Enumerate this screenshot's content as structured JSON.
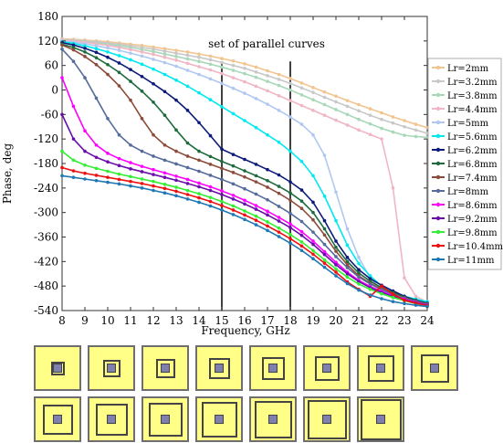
{
  "chart_data": {
    "type": "line",
    "title": "",
    "xlabel": "Frequency, GHz",
    "ylabel": "Phase, deg",
    "xlim": [
      8,
      24
    ],
    "ylim": [
      -540,
      180
    ],
    "xticks": [
      "8",
      "9",
      "10",
      "11",
      "12",
      "13",
      "14",
      "15",
      "16",
      "17",
      "18",
      "19",
      "20",
      "21",
      "22",
      "23",
      "24"
    ],
    "yticks": [
      "180",
      "120",
      "60",
      "0",
      "-60",
      "-120",
      "-180",
      "-240",
      "-300",
      "-360",
      "-420",
      "-480",
      "-540"
    ],
    "annotation": "set of parallel curves",
    "vlines": [
      15,
      18
    ],
    "legend_position": "right",
    "x": [
      8,
      8.5,
      9,
      9.5,
      10,
      10.5,
      11,
      11.5,
      12,
      12.5,
      13,
      13.5,
      14,
      14.5,
      15,
      15.5,
      16,
      16.5,
      17,
      17.5,
      18,
      18.5,
      19,
      19.5,
      20,
      20.5,
      21,
      21.5,
      22,
      22.5,
      23,
      23.5,
      24
    ],
    "series": [
      {
        "name": "Lr=2mm",
        "color": "#f2c48f",
        "values": [
          125,
          124,
          122,
          120,
          118,
          115,
          112,
          109,
          105,
          101,
          97,
          93,
          88,
          83,
          77,
          71,
          64,
          56,
          47,
          38,
          28,
          17,
          6,
          -5,
          -15,
          -26,
          -36,
          -46,
          -56,
          -66,
          -75,
          -84,
          -92
        ]
      },
      {
        "name": "Lr=3.2mm",
        "color": "#c8c8c8",
        "values": [
          124,
          122,
          120,
          118,
          115,
          112,
          108,
          104,
          100,
          95,
          90,
          85,
          80,
          74,
          67,
          60,
          53,
          44,
          35,
          26,
          16,
          5,
          -6,
          -18,
          -29,
          -40,
          -51,
          -62,
          -72,
          -81,
          -90,
          -98,
          -106
        ]
      },
      {
        "name": "Lr=3.8mm",
        "color": "#a8d8b8",
        "values": [
          123,
          121,
          118,
          115,
          112,
          108,
          104,
          99,
          94,
          88,
          82,
          76,
          70,
          63,
          56,
          48,
          40,
          31,
          21,
          11,
          0,
          -12,
          -24,
          -36,
          -48,
          -60,
          -72,
          -83,
          -94,
          -103,
          -111,
          -114,
          -116
        ]
      },
      {
        "name": "Lr=4.4mm",
        "color": "#f0b6c4",
        "values": [
          122,
          120,
          117,
          113,
          109,
          104,
          99,
          93,
          87,
          80,
          73,
          65,
          57,
          49,
          40,
          30,
          20,
          9,
          -2,
          -14,
          -26,
          -38,
          -50,
          -62,
          -74,
          -86,
          -98,
          -109,
          -120,
          -240,
          -460,
          -505,
          -520
        ]
      },
      {
        "name": "Lr=5mm",
        "color": "#b0c8f0",
        "values": [
          120,
          117,
          113,
          108,
          103,
          97,
          90,
          83,
          75,
          67,
          58,
          48,
          38,
          27,
          16,
          4,
          -8,
          -21,
          -35,
          -50,
          -66,
          -84,
          -110,
          -160,
          -250,
          -340,
          -410,
          -460,
          -490,
          -505,
          -515,
          -520,
          -522
        ]
      },
      {
        "name": "Lr=5.6mm",
        "color": "#00e8f0",
        "values": [
          118,
          114,
          108,
          101,
          93,
          84,
          74,
          63,
          51,
          38,
          24,
          9,
          -7,
          -24,
          -41,
          -58,
          -75,
          -92,
          -110,
          -128,
          -150,
          -175,
          -210,
          -260,
          -320,
          -380,
          -425,
          -455,
          -480,
          -495,
          -505,
          -512,
          -518
        ]
      },
      {
        "name": "Lr=6.2mm",
        "color": "#0c1a7a",
        "values": [
          116,
          110,
          102,
          92,
          80,
          66,
          50,
          33,
          15,
          -4,
          -25,
          -50,
          -80,
          -112,
          -145,
          -158,
          -170,
          -182,
          -195,
          -208,
          -225,
          -245,
          -275,
          -320,
          -370,
          -410,
          -440,
          -462,
          -478,
          -492,
          -505,
          -515,
          -522
        ]
      },
      {
        "name": "Lr=6.8mm",
        "color": "#1d6b3d",
        "values": [
          112,
          104,
          93,
          79,
          62,
          43,
          21,
          -3,
          -30,
          -62,
          -98,
          -130,
          -150,
          -163,
          -175,
          -186,
          -198,
          -210,
          -222,
          -236,
          -252,
          -272,
          -300,
          -340,
          -385,
          -420,
          -448,
          -468,
          -484,
          -496,
          -507,
          -516,
          -523
        ]
      },
      {
        "name": "Lr=7.4mm",
        "color": "#8c4a3a",
        "values": [
          110,
          98,
          82,
          62,
          38,
          10,
          -25,
          -70,
          -110,
          -135,
          -150,
          -162,
          -172,
          -182,
          -192,
          -202,
          -213,
          -225,
          -238,
          -253,
          -270,
          -290,
          -318,
          -355,
          -395,
          -428,
          -455,
          -473,
          -488,
          -499,
          -509,
          -517,
          -524
        ]
      },
      {
        "name": "Lr=8mm",
        "color": "#556b9a",
        "values": [
          100,
          70,
          30,
          -20,
          -70,
          -110,
          -135,
          -150,
          -162,
          -172,
          -181,
          -190,
          -199,
          -209,
          -219,
          -230,
          -242,
          -255,
          -269,
          -285,
          -302,
          -322,
          -348,
          -378,
          -408,
          -435,
          -458,
          -475,
          -489,
          -500,
          -510,
          -518,
          -525
        ]
      },
      {
        "name": "Lr=8.6mm",
        "color": "#ff00ff",
        "values": [
          30,
          -40,
          -100,
          -135,
          -155,
          -168,
          -178,
          -187,
          -195,
          -203,
          -211,
          -219,
          -228,
          -237,
          -247,
          -258,
          -270,
          -283,
          -297,
          -312,
          -328,
          -347,
          -370,
          -396,
          -422,
          -446,
          -466,
          -481,
          -493,
          -503,
          -512,
          -520,
          -526
        ]
      },
      {
        "name": "Lr=9.2mm",
        "color": "#6a0dad",
        "values": [
          -60,
          -120,
          -150,
          -165,
          -176,
          -185,
          -193,
          -200,
          -207,
          -214,
          -221,
          -229,
          -237,
          -246,
          -256,
          -267,
          -279,
          -292,
          -306,
          -321,
          -337,
          -356,
          -378,
          -403,
          -428,
          -450,
          -469,
          -484,
          -496,
          -505,
          -514,
          -521,
          -527
        ]
      },
      {
        "name": "Lr=9.8mm",
        "color": "#33ee33",
        "values": [
          -150,
          -172,
          -184,
          -192,
          -199,
          -206,
          -212,
          -218,
          -224,
          -231,
          -238,
          -246,
          -254,
          -263,
          -273,
          -284,
          -296,
          -309,
          -323,
          -338,
          -354,
          -372,
          -393,
          -416,
          -438,
          -458,
          -475,
          -488,
          -499,
          -508,
          -516,
          -523,
          -528
        ]
      },
      {
        "name": "Lr=10.4mm",
        "color": "#ee1111",
        "values": [
          -190,
          -198,
          -204,
          -209,
          -214,
          -219,
          -224,
          -229,
          -235,
          -241,
          -248,
          -256,
          -264,
          -273,
          -283,
          -294,
          -306,
          -319,
          -333,
          -348,
          -364,
          -382,
          -402,
          -424,
          -446,
          -470,
          -488,
          -505,
          -480,
          -500,
          -515,
          -522,
          -528
        ]
      },
      {
        "name": "Lr=11mm",
        "color": "#1f77b4",
        "values": [
          -210,
          -214,
          -218,
          -222,
          -226,
          -230,
          -235,
          -240,
          -246,
          -252,
          -259,
          -267,
          -275,
          -284,
          -294,
          -305,
          -317,
          -330,
          -344,
          -359,
          -375,
          -393,
          -413,
          -434,
          -455,
          -474,
          -490,
          -502,
          -511,
          -518,
          -523,
          -527,
          -530
        ]
      }
    ]
  },
  "unit_cells": [
    {
      "ring": 2
    },
    {
      "ring": 3.2
    },
    {
      "ring": 3.8
    },
    {
      "ring": 4.4
    },
    {
      "ring": 5
    },
    {
      "ring": 5.6
    },
    {
      "ring": 6.2
    },
    {
      "ring": 6.8
    },
    {
      "ring": 7.4
    },
    {
      "ring": 8
    },
    {
      "ring": 8.6
    },
    {
      "ring": 9.2
    },
    {
      "ring": 9.8
    },
    {
      "ring": 10.4
    },
    {
      "ring": 11
    }
  ]
}
